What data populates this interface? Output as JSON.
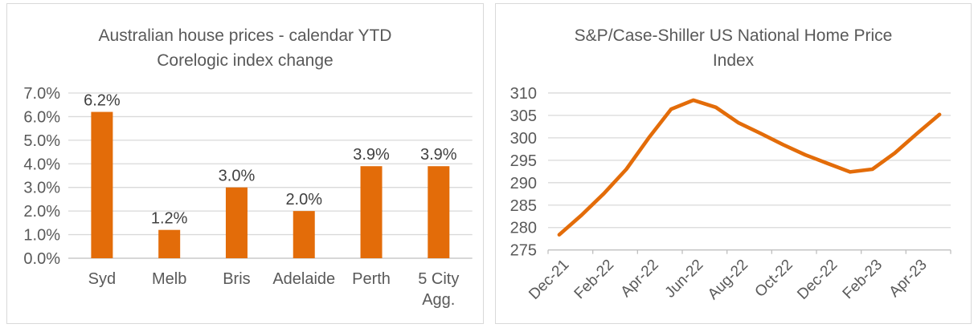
{
  "panels": {
    "left": {
      "title_lines": [
        "Australian house prices - calendar YTD",
        "Corelogic index change"
      ]
    },
    "right": {
      "title_lines": [
        "S&P/Case-Shiller US National Home Price",
        "Index"
      ]
    }
  },
  "colors": {
    "accent_orange": "#E36C09",
    "title_gray": "#595959",
    "axis_label_gray": "#595959",
    "data_label_dark": "#404040",
    "gridline": "#D9D9D9",
    "axis_line": "#BFBFBF",
    "panel_border": "#D9D9D9",
    "background": "#FFFFFF"
  },
  "chart_data": [
    {
      "type": "bar",
      "title": "Australian house prices - calendar YTD Corelogic index change",
      "categories": [
        "Syd",
        "Melb",
        "Bris",
        "Adelaide",
        "Perth",
        "5 City Agg."
      ],
      "category_display": [
        [
          "Syd"
        ],
        [
          "Melb"
        ],
        [
          "Bris"
        ],
        [
          "Adelaide"
        ],
        [
          "Perth"
        ],
        [
          "5 City",
          "Agg."
        ]
      ],
      "values": [
        6.2,
        1.2,
        3.0,
        2.0,
        3.9,
        3.9
      ],
      "data_labels": [
        "6.2%",
        "1.2%",
        "3.0%",
        "2.0%",
        "3.9%",
        "3.9%"
      ],
      "y_tick_labels": [
        "0.0%",
        "1.0%",
        "2.0%",
        "3.0%",
        "4.0%",
        "5.0%",
        "6.0%",
        "7.0%"
      ],
      "ylim": [
        0,
        7
      ],
      "y_step": 1,
      "xlabel": "",
      "ylabel": "",
      "grid": true,
      "legend": "none",
      "bar_color": "#E36C09"
    },
    {
      "type": "line",
      "title": "S&P/Case-Shiller US National Home Price Index",
      "x": [
        "Dec-21",
        "Jan-22",
        "Feb-22",
        "Mar-22",
        "Apr-22",
        "May-22",
        "Jun-22",
        "Jul-22",
        "Aug-22",
        "Sep-22",
        "Oct-22",
        "Nov-22",
        "Dec-22",
        "Jan-23",
        "Feb-23",
        "Mar-23",
        "Apr-23",
        "May-23"
      ],
      "values": [
        278.4,
        282.8,
        287.6,
        293.0,
        300.0,
        306.4,
        308.4,
        306.8,
        303.4,
        301.0,
        298.5,
        296.2,
        294.3,
        292.4,
        293.0,
        296.6,
        301.0,
        305.2
      ],
      "x_tick_labels": [
        "Dec-21",
        "Feb-22",
        "Apr-22",
        "Jun-22",
        "Aug-22",
        "Oct-22",
        "Dec-22",
        "Feb-23",
        "Apr-23"
      ],
      "y_tick_labels": [
        "275",
        "280",
        "285",
        "290",
        "295",
        "300",
        "305",
        "310"
      ],
      "ylim": [
        275,
        310
      ],
      "y_step": 5,
      "xlabel": "",
      "ylabel": "",
      "grid": true,
      "legend": "none",
      "line_color": "#E36C09",
      "x_label_rotation": -45
    }
  ]
}
